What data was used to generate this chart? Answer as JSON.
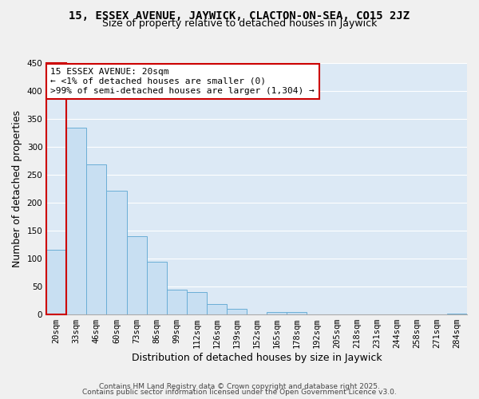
{
  "title": "15, ESSEX AVENUE, JAYWICK, CLACTON-ON-SEA, CO15 2JZ",
  "subtitle": "Size of property relative to detached houses in Jaywick",
  "xlabel": "Distribution of detached houses by size in Jaywick",
  "ylabel": "Number of detached properties",
  "bar_color": "#c8dff2",
  "bar_edge_color": "#6aaed6",
  "highlight_bar_edge_color": "#cc0000",
  "categories": [
    "20sqm",
    "33sqm",
    "46sqm",
    "60sqm",
    "73sqm",
    "86sqm",
    "99sqm",
    "112sqm",
    "126sqm",
    "139sqm",
    "152sqm",
    "165sqm",
    "178sqm",
    "192sqm",
    "205sqm",
    "218sqm",
    "231sqm",
    "244sqm",
    "258sqm",
    "271sqm",
    "284sqm"
  ],
  "values": [
    116,
    335,
    268,
    222,
    140,
    95,
    45,
    40,
    18,
    10,
    0,
    5,
    5,
    0,
    0,
    0,
    0,
    0,
    0,
    0,
    1
  ],
  "annotation_title": "15 ESSEX AVENUE: 20sqm",
  "annotation_line1": "← <1% of detached houses are smaller (0)",
  "annotation_line2": ">99% of semi-detached houses are larger (1,304) →",
  "ylim": [
    0,
    450
  ],
  "yticks": [
    0,
    50,
    100,
    150,
    200,
    250,
    300,
    350,
    400,
    450
  ],
  "footer1": "Contains HM Land Registry data © Crown copyright and database right 2025.",
  "footer2": "Contains public sector information licensed under the Open Government Licence v3.0.",
  "bg_color": "#f0f0f0",
  "plot_bg_color": "#dce9f5",
  "grid_color": "#ffffff",
  "title_fontsize": 10,
  "subtitle_fontsize": 9,
  "axis_label_fontsize": 9,
  "tick_fontsize": 7.5,
  "annotation_fontsize": 8,
  "footer_fontsize": 6.5
}
